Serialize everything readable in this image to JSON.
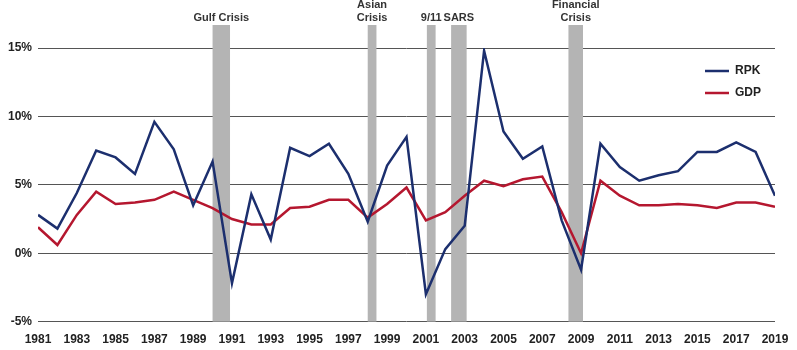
{
  "chart_data": {
    "type": "line",
    "x": [
      1981,
      1982,
      1983,
      1984,
      1985,
      1986,
      1987,
      1988,
      1989,
      1990,
      1991,
      1992,
      1993,
      1994,
      1995,
      1996,
      1997,
      1998,
      1999,
      2000,
      2001,
      2002,
      2003,
      2004,
      2005,
      2006,
      2007,
      2008,
      2009,
      2010,
      2011,
      2012,
      2013,
      2014,
      2015,
      2016,
      2017,
      2018,
      2019
    ],
    "xlim": [
      1981,
      2019
    ],
    "xticks": [
      1981,
      1983,
      1985,
      1987,
      1989,
      1991,
      1993,
      1995,
      1997,
      1999,
      2001,
      2003,
      2005,
      2007,
      2009,
      2011,
      2013,
      2015,
      2017,
      2019
    ],
    "ylim": [
      -5,
      15
    ],
    "yticks": [
      {
        "value": -5,
        "label": "-5%"
      },
      {
        "value": 0,
        "label": "0%"
      },
      {
        "value": 5,
        "label": "5%"
      },
      {
        "value": 10,
        "label": "10%"
      },
      {
        "value": 15,
        "label": "15%"
      }
    ],
    "grid": true,
    "legend": "top-right",
    "series": [
      {
        "name": "RPK",
        "color": "#1c2f6e",
        "values": [
          2.8,
          1.8,
          4.4,
          7.5,
          7.0,
          5.8,
          9.6,
          7.6,
          3.5,
          6.7,
          -2.2,
          4.3,
          1.0,
          7.7,
          7.1,
          8.0,
          5.8,
          2.3,
          6.4,
          8.5,
          -3.0,
          0.3,
          2.0,
          14.8,
          8.9,
          6.9,
          7.8,
          2.4,
          -1.2,
          8.0,
          6.3,
          5.3,
          5.7,
          6.0,
          7.4,
          7.4,
          8.1,
          7.4,
          4.2
        ]
      },
      {
        "name": "GDP",
        "color": "#b5172f",
        "values": [
          1.9,
          0.6,
          2.8,
          4.5,
          3.6,
          3.7,
          3.9,
          4.5,
          3.9,
          3.3,
          2.5,
          2.1,
          2.1,
          3.3,
          3.4,
          3.9,
          3.9,
          2.6,
          3.6,
          4.8,
          2.4,
          3.0,
          4.2,
          5.3,
          4.9,
          5.4,
          5.6,
          3.0,
          0.0,
          5.3,
          4.2,
          3.5,
          3.5,
          3.6,
          3.5,
          3.3,
          3.7,
          3.7,
          3.4
        ]
      }
    ],
    "bands": [
      {
        "label": [
          "Gulf Crisis"
        ],
        "from": 1990.0,
        "to": 1990.9
      },
      {
        "label": [
          "Asian",
          "Crisis"
        ],
        "from": 1998.0,
        "to": 1998.45
      },
      {
        "label": [
          "9/11"
        ],
        "from": 2001.05,
        "to": 2001.5
      },
      {
        "label": [
          "SARS"
        ],
        "from": 2002.3,
        "to": 2003.1
      },
      {
        "label": [
          "Financial",
          "Crisis"
        ],
        "from": 2008.35,
        "to": 2009.1
      }
    ]
  }
}
